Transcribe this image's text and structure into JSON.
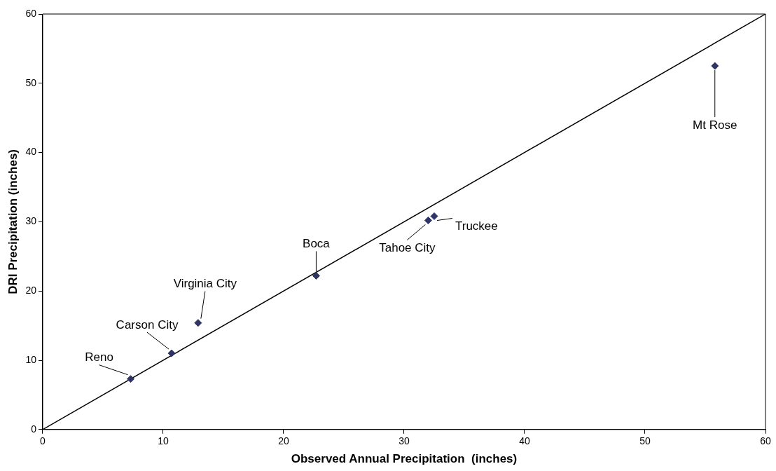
{
  "chart_data": {
    "type": "scatter",
    "xlabel": "Observed Annual Precipitation  (inches)",
    "ylabel": "DRI Precipitation (inches)",
    "xlim": [
      0,
      60
    ],
    "ylim": [
      0,
      60
    ],
    "xticks": [
      0,
      10,
      20,
      30,
      40,
      50,
      60
    ],
    "yticks": [
      0,
      10,
      20,
      30,
      40,
      50,
      60
    ],
    "grid": false,
    "legend": false,
    "marker": "diamond",
    "series": [
      {
        "color": "#2e3566",
        "x": [
          7.3,
          10.7,
          12.9,
          22.7,
          32.0,
          32.5,
          55.8
        ],
        "values": [
          7.3,
          11.0,
          15.4,
          22.2,
          30.2,
          30.8,
          52.5
        ]
      },
      {
        "type": "line",
        "color": "#000000",
        "x": [
          0,
          60
        ],
        "values": [
          0,
          60
        ],
        "marker": "none",
        "line_style": "solid"
      }
    ],
    "annotations": [
      {
        "text": "Reno",
        "x": 7.3,
        "y": 7.3
      },
      {
        "text": "Carson City",
        "x": 10.7,
        "y": 11.0
      },
      {
        "text": "Virginia City",
        "x": 12.9,
        "y": 15.4
      },
      {
        "text": "Boca",
        "x": 22.7,
        "y": 22.2
      },
      {
        "text": "Tahoe City",
        "x": 32.0,
        "y": 30.2
      },
      {
        "text": "Truckee",
        "x": 32.5,
        "y": 30.8
      },
      {
        "text": "Mt Rose",
        "x": 55.8,
        "y": 52.5
      }
    ]
  }
}
